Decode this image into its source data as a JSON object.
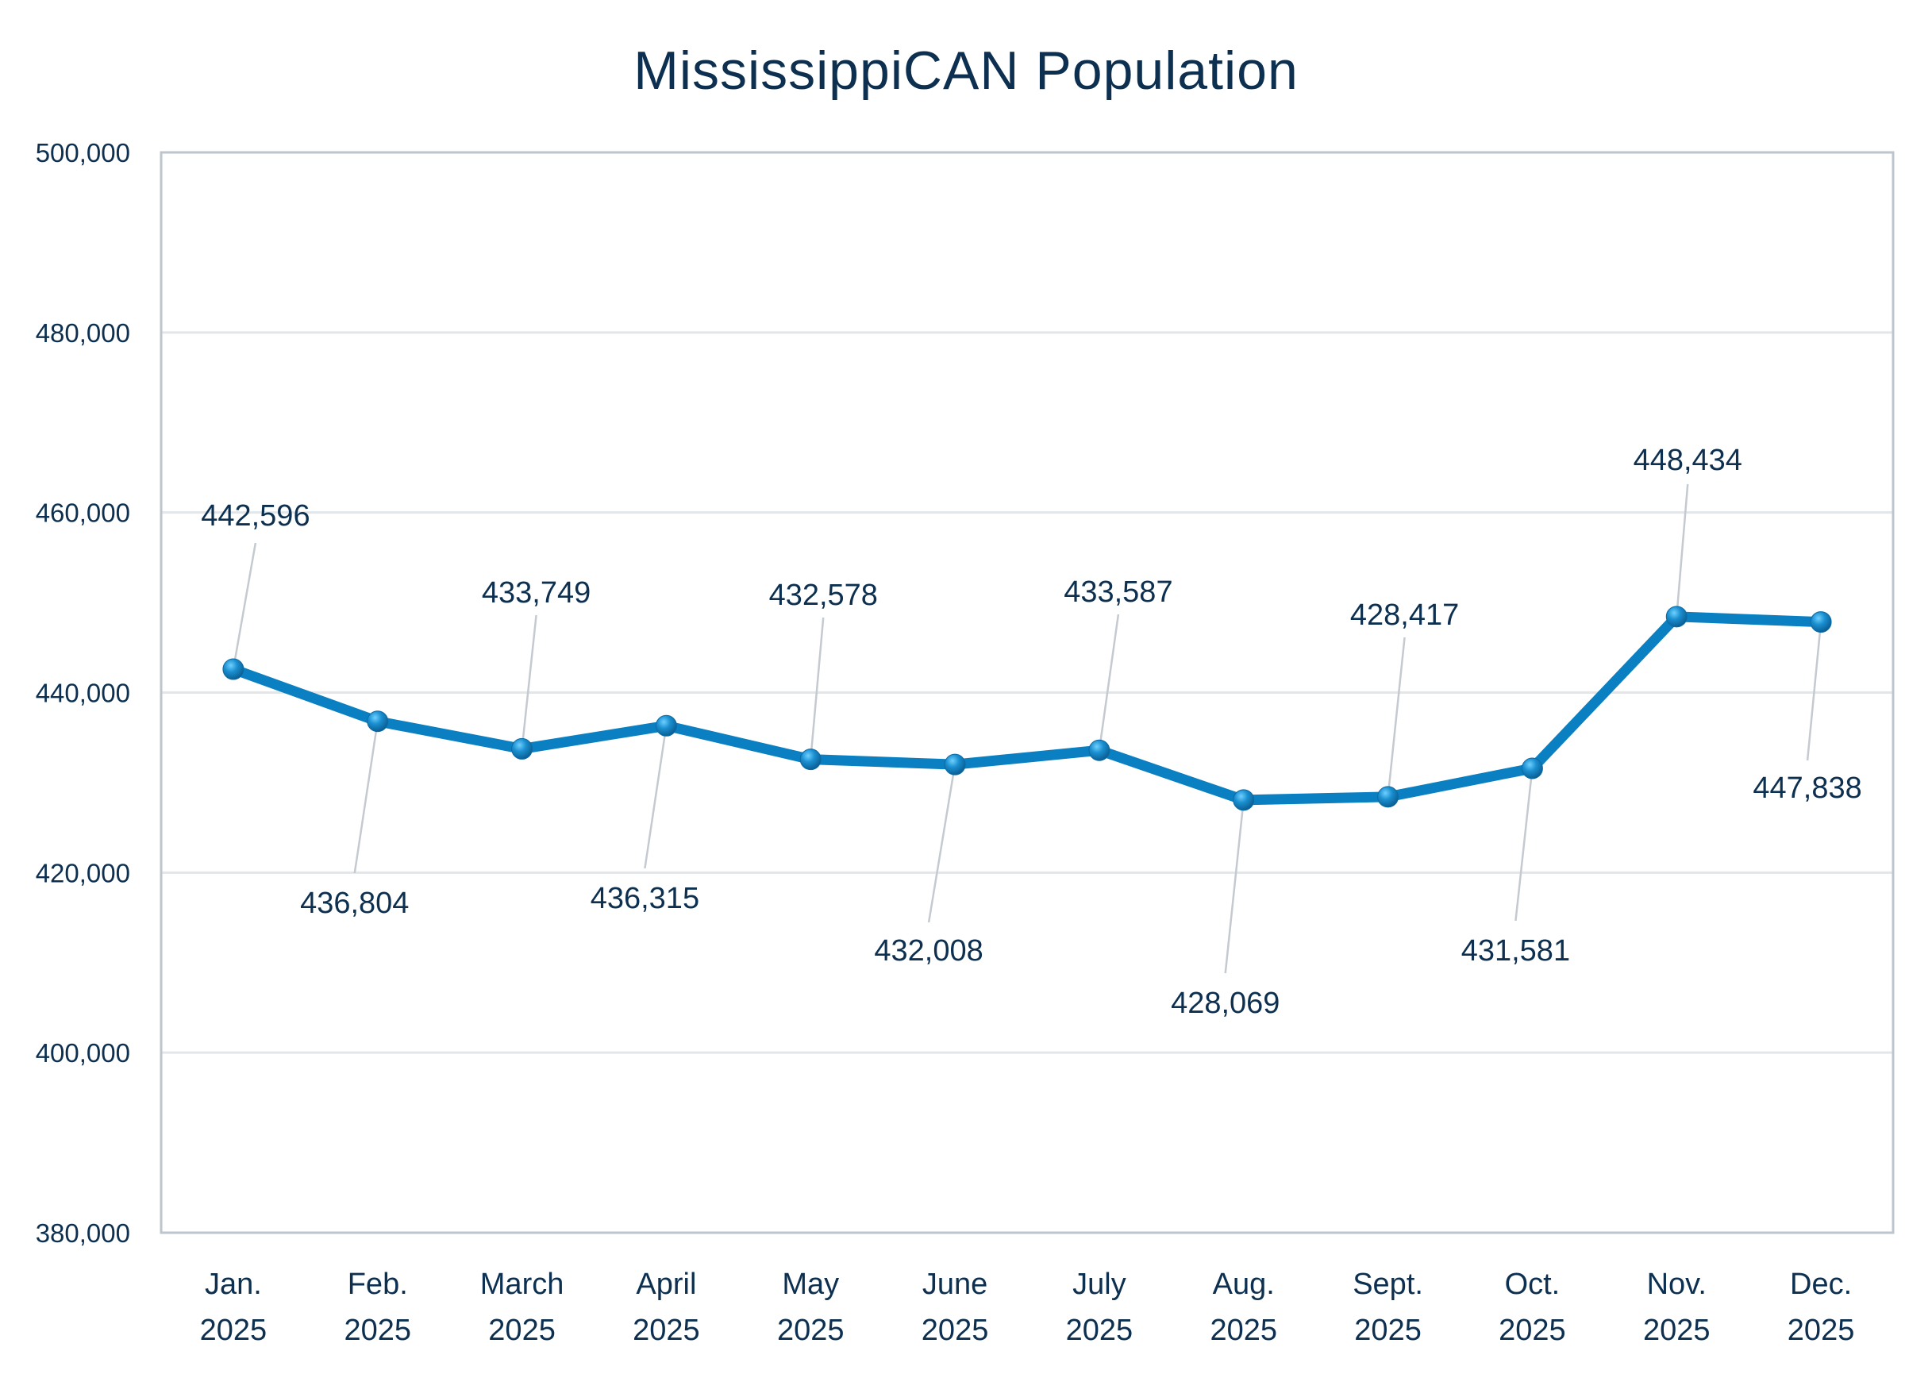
{
  "chart_data": {
    "type": "line",
    "title": "MississippiCAN Population",
    "xlabel": "",
    "ylabel": "",
    "ylim": [
      380000,
      500000
    ],
    "yticks": [
      380000,
      400000,
      420000,
      440000,
      460000,
      480000,
      500000
    ],
    "ytick_labels": [
      "380,000",
      "400,000",
      "420,000",
      "440,000",
      "460,000",
      "480,000",
      "500,000"
    ],
    "grid": true,
    "legend": "none",
    "categories": [
      [
        "Jan.",
        "2025"
      ],
      [
        "Feb.",
        "2025"
      ],
      [
        "March",
        "2025"
      ],
      [
        "April",
        "2025"
      ],
      [
        "May",
        "2025"
      ],
      [
        "June",
        "2025"
      ],
      [
        "July",
        "2025"
      ],
      [
        "Aug.",
        "2025"
      ],
      [
        "Sept.",
        "2025"
      ],
      [
        "Oct.",
        "2025"
      ],
      [
        "Nov.",
        "2025"
      ],
      [
        "Dec.",
        "2025"
      ]
    ],
    "series": [
      {
        "name": "MississippiCAN Population",
        "values": [
          442596,
          436804,
          433749,
          436315,
          432578,
          432008,
          433587,
          428069,
          428417,
          431581,
          448434,
          447838
        ],
        "data_labels": [
          "442,596",
          "436,804",
          "433,749",
          "436,315",
          "432,578",
          "432,008",
          "433,587",
          "428,069",
          "428,417",
          "431,581",
          "448,434",
          "447,838"
        ],
        "color": "#0a80c2"
      }
    ]
  },
  "colors": {
    "text": "#0d3050",
    "axis_border": "#bcc6cc",
    "gridline": "#e3e6e9",
    "leader_line": "#c4cad0",
    "line": "#0a80c2",
    "marker": "#1a8fd0"
  }
}
